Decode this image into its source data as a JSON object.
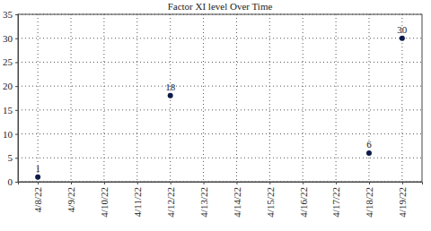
{
  "chart_data": {
    "type": "scatter",
    "title": "Factor XI level Over Time",
    "categories": [
      "4/8/22",
      "4/9/22",
      "4/10/22",
      "4/11/22",
      "4/12/22",
      "4/13/22",
      "4/14/22",
      "4/15/22",
      "4/16/22",
      "4/17/22",
      "4/18/22",
      "4/19/22"
    ],
    "values": [
      1,
      null,
      null,
      null,
      18,
      null,
      null,
      null,
      null,
      null,
      6,
      30
    ],
    "color": "#0d1b4a",
    "marker": "circle",
    "ylim": [
      0,
      35
    ],
    "yticks": [
      0,
      5,
      10,
      15,
      20,
      25,
      30,
      35
    ],
    "grid": true,
    "data_labels": true
  }
}
